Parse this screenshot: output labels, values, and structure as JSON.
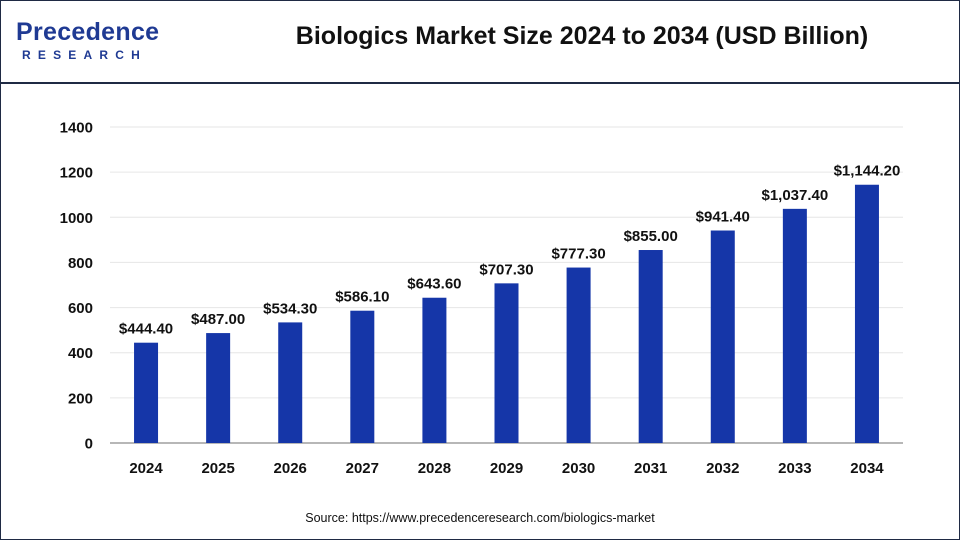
{
  "logo": {
    "wordmark_top": "Precedence",
    "wordmark_bottom": "RESEARCH"
  },
  "header": {
    "title": "Biologics Market Size 2024 to 2034 (USD Billion)"
  },
  "footer": {
    "source": "Source: https://www.precedenceresearch.com/biologics-market"
  },
  "colors": {
    "bar": "#1536a8",
    "brand": "#1f3a93",
    "text": "#111111",
    "grid": "#e6e6e6",
    "axis": "#8c8c8c"
  },
  "chart_data": {
    "type": "bar",
    "title": "Biologics Market Size 2024 to 2034 (USD Billion)",
    "categories": [
      "2024",
      "2025",
      "2026",
      "2027",
      "2028",
      "2029",
      "2030",
      "2031",
      "2032",
      "2033",
      "2034"
    ],
    "values": [
      444.4,
      487.0,
      534.3,
      586.1,
      643.6,
      707.3,
      777.3,
      855.0,
      941.4,
      1037.4,
      1144.2
    ],
    "value_labels": [
      "$444.40",
      "$487.00",
      "$534.30",
      "$586.10",
      "$643.60",
      "$707.30",
      "$777.30",
      "$855.00",
      "$941.40",
      "$1,037.40",
      "$1,144.20"
    ],
    "ylim": [
      0,
      1400
    ],
    "yticks": [
      0,
      200,
      400,
      600,
      800,
      1000,
      1200,
      1400
    ],
    "grid": true,
    "legend": "none"
  }
}
